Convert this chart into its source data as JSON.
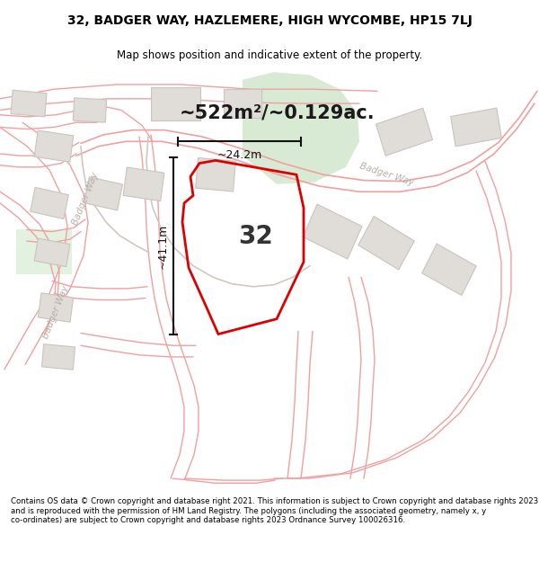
{
  "title_line1": "32, BADGER WAY, HAZLEMERE, HIGH WYCOMBE, HP15 7LJ",
  "title_line2": "Map shows position and indicative extent of the property.",
  "area_label": "~522m²/~0.129ac.",
  "property_number": "32",
  "dim_width": "~24.2m",
  "dim_height": "~41.1m",
  "footer_text": "Contains OS data © Crown copyright and database right 2021. This information is subject to Crown copyright and database rights 2023 and is reproduced with the permission of HM Land Registry. The polygons (including the associated geometry, namely x, y co-ordinates) are subject to Crown copyright and database rights 2023 Ordnance Survey 100026316.",
  "bg_color": "#ffffff",
  "map_bg": "#ffffff",
  "road_color": "#f0a0a0",
  "road_outline_color": "#d0c8c0",
  "plot_fill": "none",
  "plot_edge": "#dd0000",
  "green_fill": "#d4e8d0",
  "green_fill2": "#d8ecd4",
  "building_fill": "#e0dcd8",
  "building_edge": "#c8c4c0",
  "label_color": "#b8b0a8",
  "dim_color": "#111111",
  "area_font": 15,
  "title_font": 10,
  "sub_font": 8.5,
  "footer_font": 6.2
}
